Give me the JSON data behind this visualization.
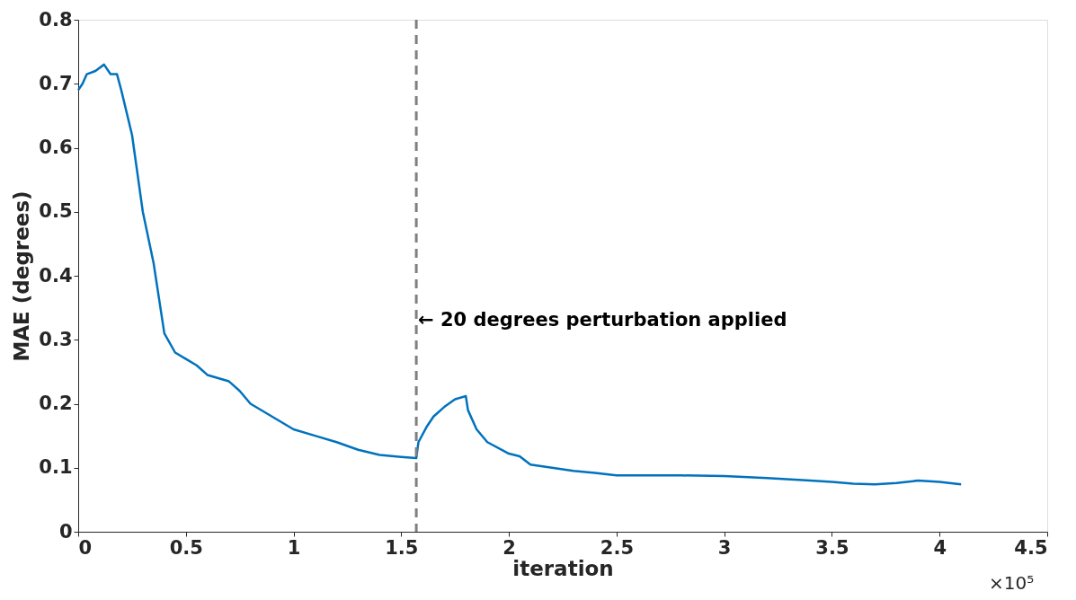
{
  "chart_data": {
    "type": "line",
    "xlabel": "iteration",
    "ylabel": "MAE (degrees)",
    "xlim": [
      0,
      4.5
    ],
    "xticks": [
      0,
      0.5,
      1,
      1.5,
      2,
      2.5,
      3,
      3.5,
      4,
      4.5
    ],
    "ylim": [
      0,
      0.8
    ],
    "yticks": [
      0,
      0.1,
      0.2,
      0.3,
      0.4,
      0.5,
      0.6,
      0.7,
      0.8
    ],
    "grid": false,
    "marker": "none",
    "line_style": "solid",
    "x": [
      0,
      0.02,
      0.04,
      0.08,
      0.12,
      0.15,
      0.18,
      0.2,
      0.25,
      0.3,
      0.35,
      0.4,
      0.45,
      0.5,
      0.55,
      0.6,
      0.7,
      0.75,
      0.8,
      0.9,
      1.0,
      1.1,
      1.2,
      1.3,
      1.4,
      1.5,
      1.57,
      1.58,
      1.62,
      1.65,
      1.7,
      1.75,
      1.8,
      1.81,
      1.85,
      1.9,
      2.0,
      2.05,
      2.1,
      2.2,
      2.3,
      2.4,
      2.5,
      2.6,
      2.8,
      3.0,
      3.2,
      3.4,
      3.5,
      3.6,
      3.7,
      3.8,
      3.9,
      4.0,
      4.1
    ],
    "series": [
      {
        "color": "#0072bd",
        "values": [
          0.69,
          0.7,
          0.715,
          0.72,
          0.73,
          0.715,
          0.715,
          0.69,
          0.62,
          0.5,
          0.42,
          0.31,
          0.28,
          0.27,
          0.26,
          0.245,
          0.235,
          0.22,
          0.2,
          0.18,
          0.16,
          0.15,
          0.14,
          0.128,
          0.12,
          0.117,
          0.115,
          0.14,
          0.165,
          0.18,
          0.195,
          0.207,
          0.212,
          0.19,
          0.16,
          0.14,
          0.122,
          0.118,
          0.105,
          0.1,
          0.095,
          0.092,
          0.088,
          0.088,
          0.088,
          0.087,
          0.084,
          0.08,
          0.078,
          0.075,
          0.074,
          0.076,
          0.08,
          0.078,
          0.074
        ]
      }
    ],
    "ref_lines": [
      {
        "axis": "x",
        "value": 1.57,
        "label": "← 20 degrees perturbation applied",
        "color": "#808080",
        "line_style": "dashed"
      }
    ],
    "annotations": [
      "×10⁵"
    ]
  }
}
